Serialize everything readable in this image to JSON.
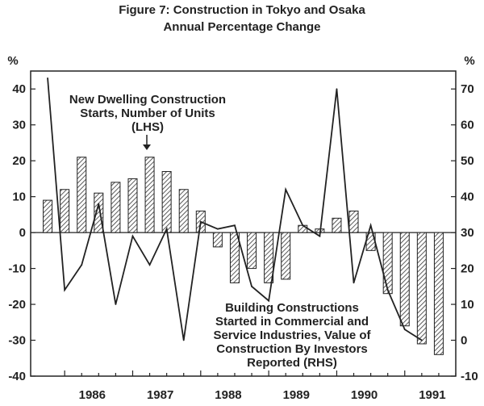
{
  "chart_data": {
    "type": "bar+line",
    "title": "Figure 7: Construction in Tokyo and Osaka",
    "subtitle": "Annual Percentage Change",
    "left_axis": {
      "unit": "%",
      "range": [
        -40,
        45
      ],
      "ticks": [
        40,
        30,
        20,
        10,
        0,
        -10,
        -20,
        -30,
        -40
      ]
    },
    "right_axis": {
      "unit": "%",
      "range": [
        -10,
        75
      ],
      "ticks": [
        70,
        60,
        50,
        40,
        30,
        20,
        10,
        0,
        -10
      ]
    },
    "x_axis": {
      "start": 1985.5,
      "end": 1991.75,
      "tick_labels": [
        "1986",
        "1987",
        "1988",
        "1989",
        "1990",
        "1991"
      ],
      "tick_positions": [
        1986,
        1987,
        1988,
        1989,
        1990,
        1991
      ]
    },
    "bars": {
      "name": "New Dwelling Construction Starts, Number of Units",
      "axis": "left",
      "periods": [
        1985.75,
        1986.0,
        1986.25,
        1986.5,
        1986.75,
        1987.0,
        1987.25,
        1987.5,
        1987.75,
        1988.0,
        1988.25,
        1988.5,
        1988.75,
        1989.0,
        1989.25,
        1989.5,
        1989.75,
        1990.0,
        1990.25,
        1990.5,
        1990.75,
        1991.0,
        1991.25,
        1991.5
      ],
      "values": [
        9,
        12,
        21,
        11,
        14,
        15,
        21,
        17,
        12,
        6,
        -4,
        -14,
        -10,
        -14,
        -13,
        2,
        1,
        4,
        6,
        -5,
        -17,
        -26,
        -31,
        -34
      ]
    },
    "line": {
      "name": "Building Constructions Started in Commercial and Service Industries, Value of Construction By Investors Reported",
      "axis": "right",
      "periods": [
        1985.75,
        1986.0,
        1986.25,
        1986.5,
        1986.75,
        1987.0,
        1987.25,
        1987.5,
        1987.75,
        1988.0,
        1988.25,
        1988.5,
        1988.75,
        1989.0,
        1989.25,
        1989.5,
        1989.75,
        1990.0,
        1990.25,
        1990.5,
        1990.75,
        1991.0,
        1991.25,
        1991.5
      ],
      "values": [
        73,
        14,
        21,
        38,
        10,
        29,
        21,
        31,
        0,
        33,
        31,
        32,
        15,
        11,
        42,
        32,
        29,
        70,
        16,
        32,
        14,
        3,
        0,
        null
      ]
    },
    "annotations": {
      "bars_label": [
        "New Dwelling Construction",
        "Starts, Number of Units",
        "(LHS)"
      ],
      "line_label": [
        "Building Constructions",
        "Started in Commercial and",
        "Service Industries, Value of",
        "Construction By Investors",
        "Reported (RHS)"
      ]
    },
    "colors": {
      "bar_fill": "#ffffff",
      "bar_hatch": "#333333",
      "line": "#222222",
      "highlight": "#2a8a3a"
    }
  }
}
